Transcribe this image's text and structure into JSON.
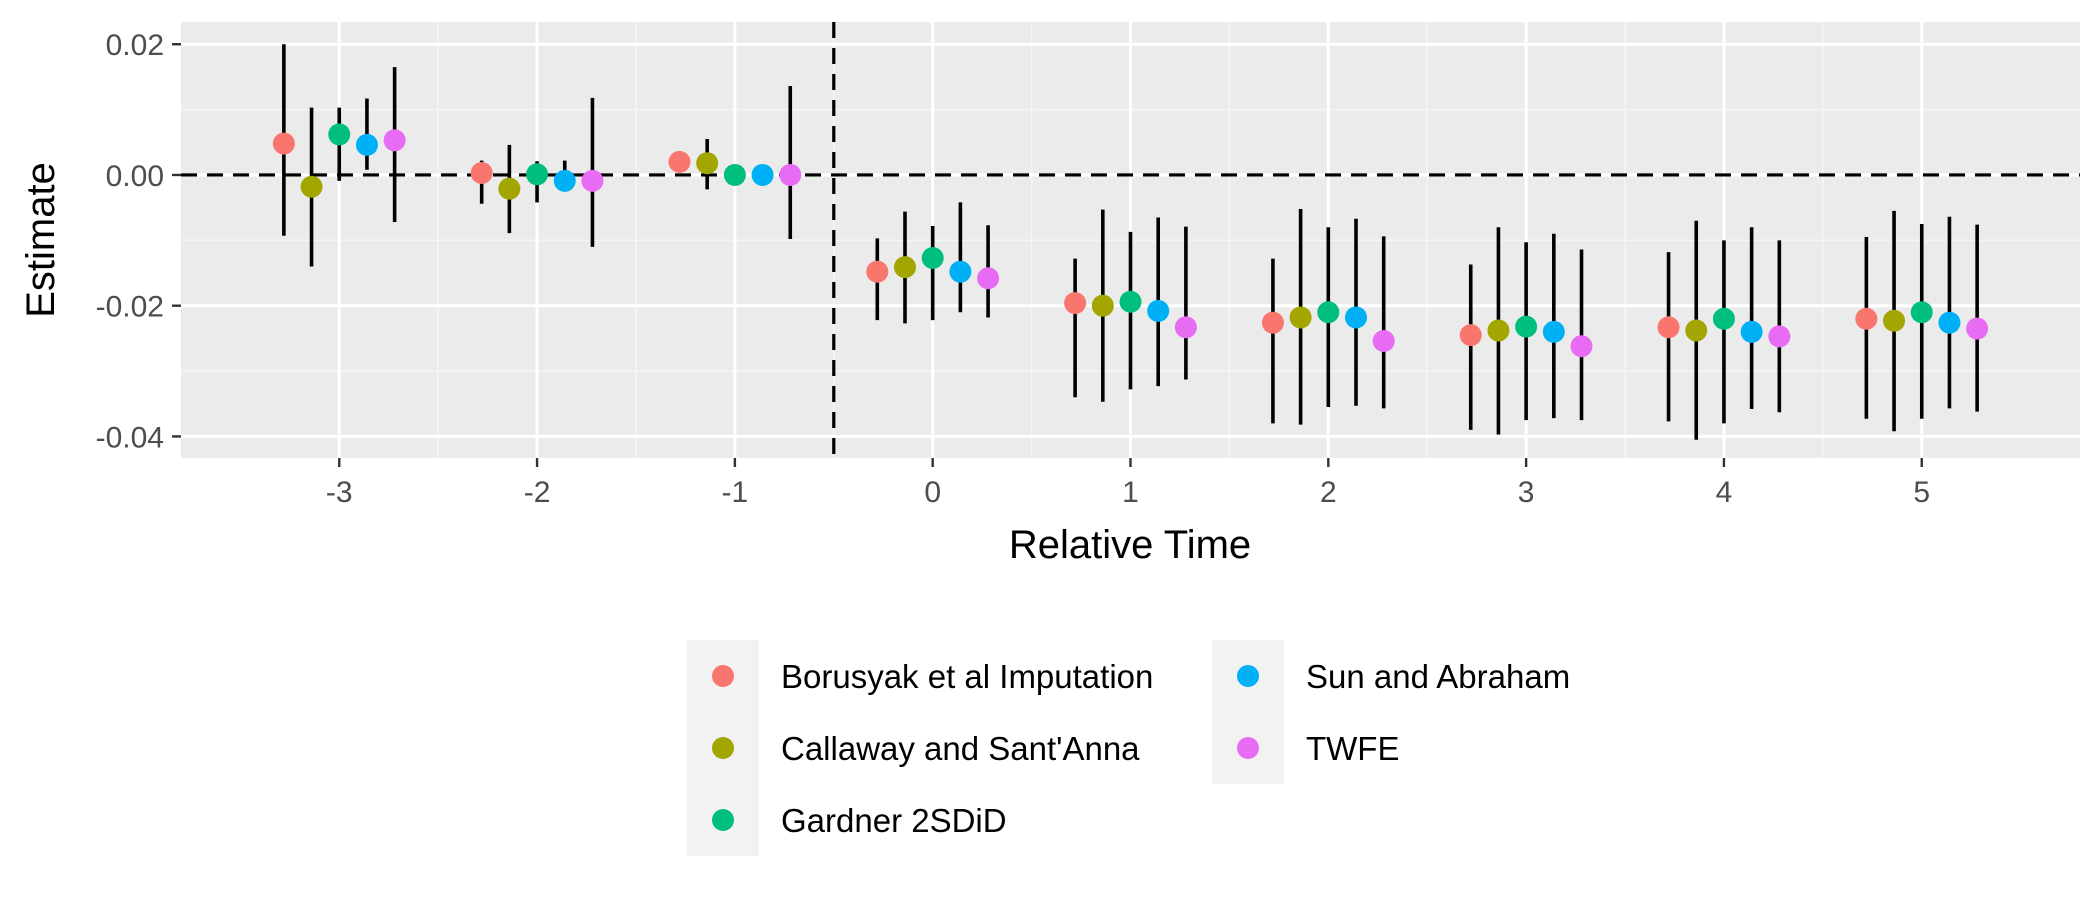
{
  "chart_data": {
    "type": "scatter",
    "xlabel": "Relative Time",
    "ylabel": "Estimate",
    "xlim": [
      -3.8,
      5.8
    ],
    "ylim": [
      -0.0433,
      0.0234
    ],
    "x_ticks": [
      "-3",
      "-2",
      "-1",
      "0",
      "1",
      "2",
      "3",
      "4",
      "5"
    ],
    "y_ticks": [
      "0.02",
      "0.00",
      "-0.02",
      "-0.04"
    ],
    "grid": true,
    "reference_lines": {
      "horizontal_y": 0,
      "vertical_x": -0.5
    },
    "dodge_offsets": [
      -0.28,
      -0.14,
      0,
      0.14,
      0.28
    ],
    "legend_position": "bottom",
    "series": [
      {
        "name": "Borusyak et al Imputation",
        "color": "#F8766D",
        "x": [
          -3,
          -2,
          -1,
          0,
          1,
          2,
          3,
          4,
          5
        ],
        "estimate": [
          0.0048,
          0.0003,
          0.002,
          -0.0148,
          -0.0196,
          -0.0226,
          -0.0245,
          -0.0233,
          -0.022
        ],
        "ci_low": [
          -0.0093,
          -0.0044,
          null,
          -0.0222,
          -0.034,
          -0.038,
          -0.039,
          -0.0377,
          -0.0373
        ],
        "ci_high": [
          0.02,
          0.0022,
          null,
          -0.0097,
          -0.0128,
          -0.0128,
          -0.0137,
          -0.0118,
          -0.0095
        ]
      },
      {
        "name": "Callaway and Sant'Anna",
        "color": "#A3A500",
        "x": [
          -3,
          -2,
          -1,
          0,
          1,
          2,
          3,
          4,
          5
        ],
        "estimate": [
          -0.0018,
          -0.0021,
          0.0018,
          -0.0141,
          -0.02,
          -0.0218,
          -0.0238,
          -0.0238,
          -0.0223
        ],
        "ci_low": [
          -0.014,
          -0.0089,
          -0.0022,
          -0.0227,
          -0.0347,
          -0.0382,
          -0.0397,
          -0.0405,
          -0.0392
        ],
        "ci_high": [
          0.0103,
          0.0046,
          0.0055,
          -0.0056,
          -0.0053,
          -0.0052,
          -0.008,
          -0.007,
          -0.0055
        ]
      },
      {
        "name": "Gardner 2SDiD",
        "color": "#00BF7D",
        "x": [
          -3,
          -2,
          -1,
          0,
          1,
          2,
          3,
          4,
          5
        ],
        "estimate": [
          0.0062,
          0.0001,
          0.0,
          -0.0127,
          -0.0194,
          -0.021,
          -0.0232,
          -0.022,
          -0.021
        ],
        "ci_low": [
          -0.0009,
          -0.0042,
          null,
          -0.0222,
          -0.0328,
          -0.0355,
          -0.0375,
          -0.038,
          -0.0373
        ],
        "ci_high": [
          0.0103,
          0.0021,
          null,
          -0.0078,
          -0.0087,
          -0.008,
          -0.0103,
          -0.01,
          -0.0075
        ]
      },
      {
        "name": "Sun and Abraham",
        "color": "#00B0F6",
        "x": [
          -3,
          -2,
          -1,
          0,
          1,
          2,
          3,
          4,
          5
        ],
        "estimate": [
          0.0046,
          -0.0009,
          0.0,
          -0.0148,
          -0.0208,
          -0.0218,
          -0.024,
          -0.024,
          -0.0226
        ],
        "ci_low": [
          0.0008,
          -0.0017,
          null,
          -0.021,
          -0.0323,
          -0.0353,
          -0.0372,
          -0.0358,
          -0.0357
        ],
        "ci_high": [
          0.0117,
          0.0022,
          null,
          -0.0042,
          -0.0065,
          -0.0067,
          -0.009,
          -0.008,
          -0.0064
        ]
      },
      {
        "name": "TWFE",
        "color": "#E76BF3",
        "x": [
          -3,
          -2,
          -1,
          0,
          1,
          2,
          3,
          4,
          5
        ],
        "estimate": [
          0.0053,
          -0.0009,
          0.0,
          -0.0158,
          -0.0233,
          -0.0254,
          -0.0262,
          -0.0247,
          -0.0235
        ],
        "ci_low": [
          -0.0072,
          -0.011,
          -0.0098,
          -0.0218,
          -0.0313,
          -0.0357,
          -0.0375,
          -0.0363,
          -0.0362
        ],
        "ci_high": [
          0.0165,
          0.0118,
          0.0136,
          -0.0077,
          -0.0079,
          -0.0094,
          -0.0114,
          -0.01,
          -0.0076
        ]
      }
    ]
  }
}
